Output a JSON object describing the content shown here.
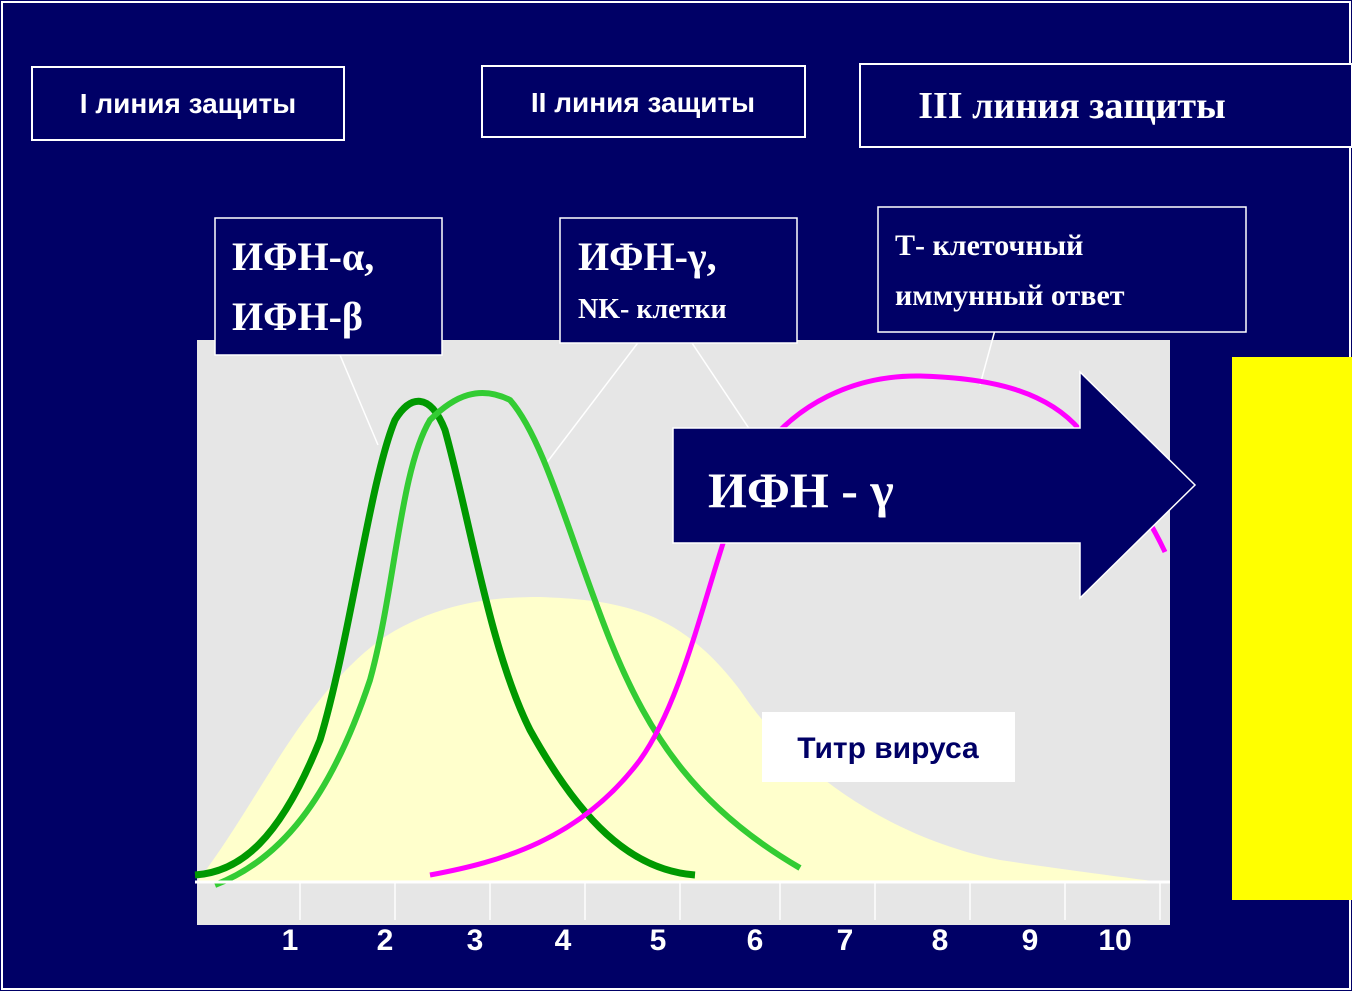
{
  "header_boxes": [
    "I линия защиты",
    "II линия защиты",
    "III линия защиты"
  ],
  "callouts": [
    {
      "lines": [
        "ИФН-α,",
        "ИФН-β"
      ]
    },
    {
      "lines": [
        "ИФН-γ,",
        "NK- клетки"
      ]
    },
    {
      "lines": [
        "Т- клеточный",
        "иммунный ответ"
      ]
    }
  ],
  "arrow_label": "ИФН - γ",
  "virus_label": "Титр вируса",
  "axis_labels": [
    "1",
    "2",
    "3",
    "4",
    "5",
    "6",
    "7",
    "8",
    "9",
    "10"
  ]
}
